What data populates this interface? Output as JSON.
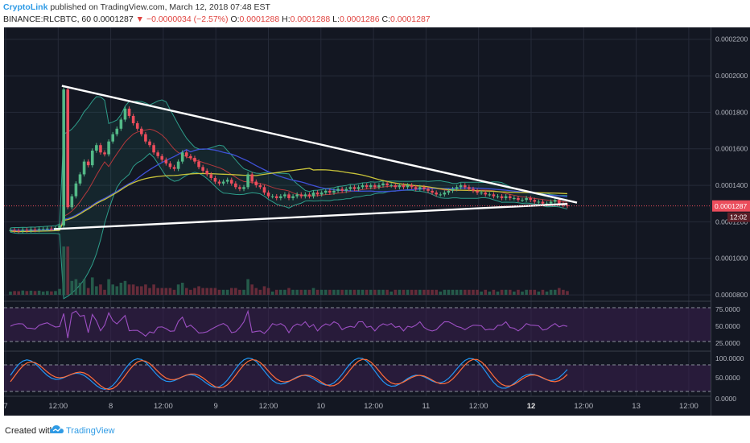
{
  "header": {
    "publisher": "CryptoLink",
    "published_text": "published on TradingView.com, March 12, 2018 07:48 EST",
    "symbol": "BINANCE:RLCBTC, 60",
    "last": "0.0001287",
    "change_arrow": "▼",
    "change": "−0.0000034 (−2.57%)",
    "o_label": "O:",
    "o": "0.0001288",
    "h_label": "H:",
    "h": "0.0001288",
    "l_label": "L:",
    "l": "0.0001286",
    "c_label": "C:",
    "c": "0.0001287"
  },
  "footer": {
    "created_with": "Created with",
    "brand": "TradingView"
  },
  "price_badge": {
    "value": "0.0001287",
    "countdown": "12:02"
  },
  "colors": {
    "bg": "#131722",
    "up": "#53b987",
    "down": "#eb4d5c",
    "grid": "#262b39",
    "rsi": "#9c4fc2",
    "stoch_k": "#2196f3",
    "stoch_d": "#ff6d3a"
  },
  "chart_data": {
    "type": "candlestick",
    "x_ticks": [
      "7",
      "12:00",
      "8",
      "12:00",
      "9",
      "12:00",
      "10",
      "12:00",
      "11",
      "12:00",
      "12",
      "12:00",
      "13",
      "12:00"
    ],
    "price_ticks": [
      "0.0002200",
      "0.0002000",
      "0.0001800",
      "0.0001600",
      "0.0001400",
      "0.0001200",
      "0.0001000",
      "0.0000800"
    ],
    "price_range": [
      7.65e-05,
      0.0002265
    ],
    "rsi_ticks": [
      "75.0000",
      "50.0000",
      "25.0000"
    ],
    "stoch_ticks": [
      "100.0000",
      "50.0000",
      "0.0000"
    ],
    "close_series": [
      0.0001155,
      0.0001152,
      0.000115,
      0.0001156,
      0.0001153,
      0.0001158,
      0.0001155,
      0.000116,
      0.000116,
      0.0001163,
      0.0001162,
      0.0001165,
      0.000118,
      0.0001925,
      0.000128,
      0.000134,
      0.000141,
      0.000146,
      0.000153,
      0.000151,
      0.000159,
      0.000162,
      0.000158,
      0.000157,
      0.000164,
      0.000168,
      0.000171,
      0.000176,
      0.000182,
      0.000178,
      0.000174,
      0.000171,
      0.000168,
      0.000164,
      0.000162,
      0.000158,
      0.000156,
      0.000154,
      0.000152,
      0.00015,
      0.000149,
      0.000153,
      0.000158,
      0.000156,
      0.000155,
      0.000153,
      0.00015,
      0.000148,
      0.000146,
      0.000144,
      0.000142,
      0.000141,
      0.000142,
      0.000143,
      0.000141,
      0.000139,
      0.000138,
      0.000139,
      0.000146,
      0.000142,
      0.00014,
      0.000139,
      0.000136,
      0.000134,
      0.000134,
      0.000133,
      0.000134,
      0.000135,
      0.000133,
      0.000134,
      0.000135,
      0.000134,
      0.000135,
      0.000134,
      0.000136,
      0.000135,
      0.000136,
      0.000137,
      0.000136,
      0.000137,
      0.000138,
      0.000137,
      0.000138,
      0.000139,
      0.000138,
      0.000139,
      0.00014,
      0.000139,
      0.00014,
      0.000139,
      0.00014,
      0.000141,
      0.00014,
      0.00014,
      0.000139,
      0.00014,
      0.000139,
      0.00014,
      0.000139,
      0.000138,
      0.000139,
      0.000138,
      0.000137,
      0.000136,
      0.000135,
      0.000135,
      0.000136,
      0.000137,
      0.000138,
      0.000139,
      0.00014,
      0.000139,
      0.000138,
      0.000137,
      0.000136,
      0.000136,
      0.000135,
      0.000135,
      0.000134,
      0.000134,
      0.000133,
      0.000134,
      0.000133,
      0.000133,
      0.000132,
      0.000132,
      0.000133,
      0.000132,
      0.000131,
      0.000131,
      0.00013,
      0.00013,
      0.000131,
      0.000132,
      0.00013,
      0.000129,
      0.0001287
    ],
    "triangle": {
      "upper": [
        [
          1,
          0.0001945
        ],
        [
          29,
          0.0001305
        ]
      ],
      "lower": [
        [
          1,
          0.000116
        ],
        [
          29,
          0.0001298
        ]
      ]
    }
  }
}
